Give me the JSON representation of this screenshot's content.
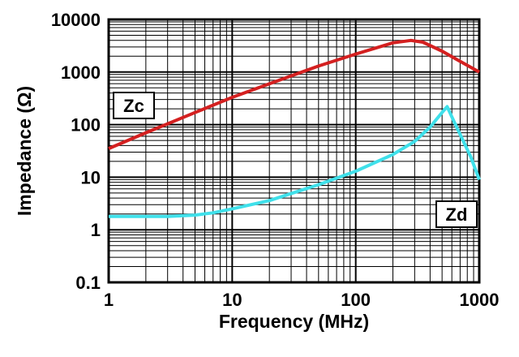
{
  "chart_data": {
    "type": "line",
    "title": "",
    "xlabel": "Frequency (MHz)",
    "ylabel": "Impedance (Ω)",
    "x_scale": "log",
    "y_scale": "log",
    "xlim": [
      1,
      1000
    ],
    "ylim": [
      0.1,
      10000
    ],
    "x_ticks": [
      "1",
      "10",
      "100",
      "1000"
    ],
    "y_ticks": [
      "0.1",
      "1",
      "10",
      "100",
      "1000",
      "10000"
    ],
    "grid": true,
    "series": [
      {
        "name": "Zc",
        "color": "#d42020",
        "points": [
          [
            1,
            35
          ],
          [
            2,
            70
          ],
          [
            5,
            170
          ],
          [
            10,
            330
          ],
          [
            20,
            600
          ],
          [
            50,
            1300
          ],
          [
            100,
            2200
          ],
          [
            200,
            3600
          ],
          [
            280,
            4000
          ],
          [
            350,
            3700
          ],
          [
            500,
            2500
          ],
          [
            700,
            1600
          ],
          [
            1000,
            1000
          ]
        ]
      },
      {
        "name": "Zd",
        "color": "#3fe0ea",
        "points": [
          [
            1,
            1.8
          ],
          [
            2,
            1.8
          ],
          [
            3,
            1.8
          ],
          [
            5,
            1.9
          ],
          [
            7,
            2.1
          ],
          [
            10,
            2.5
          ],
          [
            20,
            3.6
          ],
          [
            50,
            7.2
          ],
          [
            100,
            13
          ],
          [
            200,
            27
          ],
          [
            300,
            48
          ],
          [
            400,
            90
          ],
          [
            500,
            170
          ],
          [
            550,
            220
          ],
          [
            600,
            140
          ],
          [
            700,
            65
          ],
          [
            850,
            25
          ],
          [
            1000,
            9
          ]
        ]
      }
    ]
  }
}
